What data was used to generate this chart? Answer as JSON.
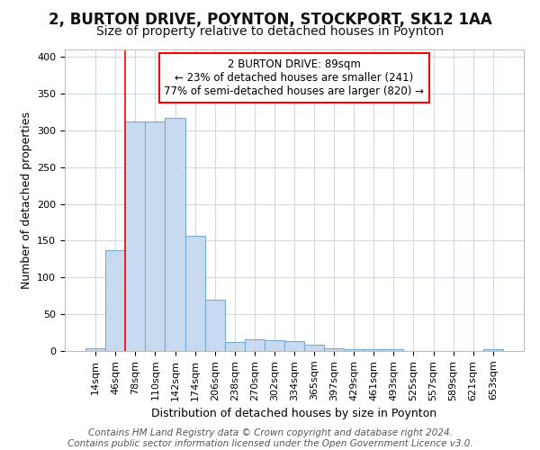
{
  "title1": "2, BURTON DRIVE, POYNTON, STOCKPORT, SK12 1AA",
  "title2": "Size of property relative to detached houses in Poynton",
  "xlabel": "Distribution of detached houses by size in Poynton",
  "ylabel": "Number of detached properties",
  "categories": [
    "14sqm",
    "46sqm",
    "78sqm",
    "110sqm",
    "142sqm",
    "174sqm",
    "206sqm",
    "238sqm",
    "270sqm",
    "302sqm",
    "334sqm",
    "365sqm",
    "397sqm",
    "429sqm",
    "461sqm",
    "493sqm",
    "525sqm",
    "557sqm",
    "589sqm",
    "621sqm",
    "653sqm"
  ],
  "values": [
    4,
    137,
    312,
    312,
    317,
    157,
    70,
    12,
    16,
    15,
    13,
    9,
    4,
    3,
    3,
    3,
    0,
    0,
    0,
    0,
    2
  ],
  "bar_color": "#c8daf0",
  "bar_edge_color": "#7aaad0",
  "grid_color": "#d0d8e8",
  "annotation_text": "2 BURTON DRIVE: 89sqm\n← 23% of detached houses are smaller (241)\n77% of semi-detached houses are larger (820) →",
  "annotation_box_color": "white",
  "annotation_box_edge": "red",
  "vline_x": 2.0,
  "vline_color": "red",
  "ylim": [
    0,
    410
  ],
  "yticks": [
    0,
    50,
    100,
    150,
    200,
    250,
    300,
    350,
    400
  ],
  "footnote": "Contains HM Land Registry data © Crown copyright and database right 2024.\nContains public sector information licensed under the Open Government Licence v3.0.",
  "background_color": "#ffffff",
  "title1_fontsize": 12,
  "title2_fontsize": 10,
  "xlabel_fontsize": 9,
  "ylabel_fontsize": 9,
  "tick_fontsize": 8,
  "footnote_fontsize": 7.5,
  "annot_fontsize": 8.5
}
